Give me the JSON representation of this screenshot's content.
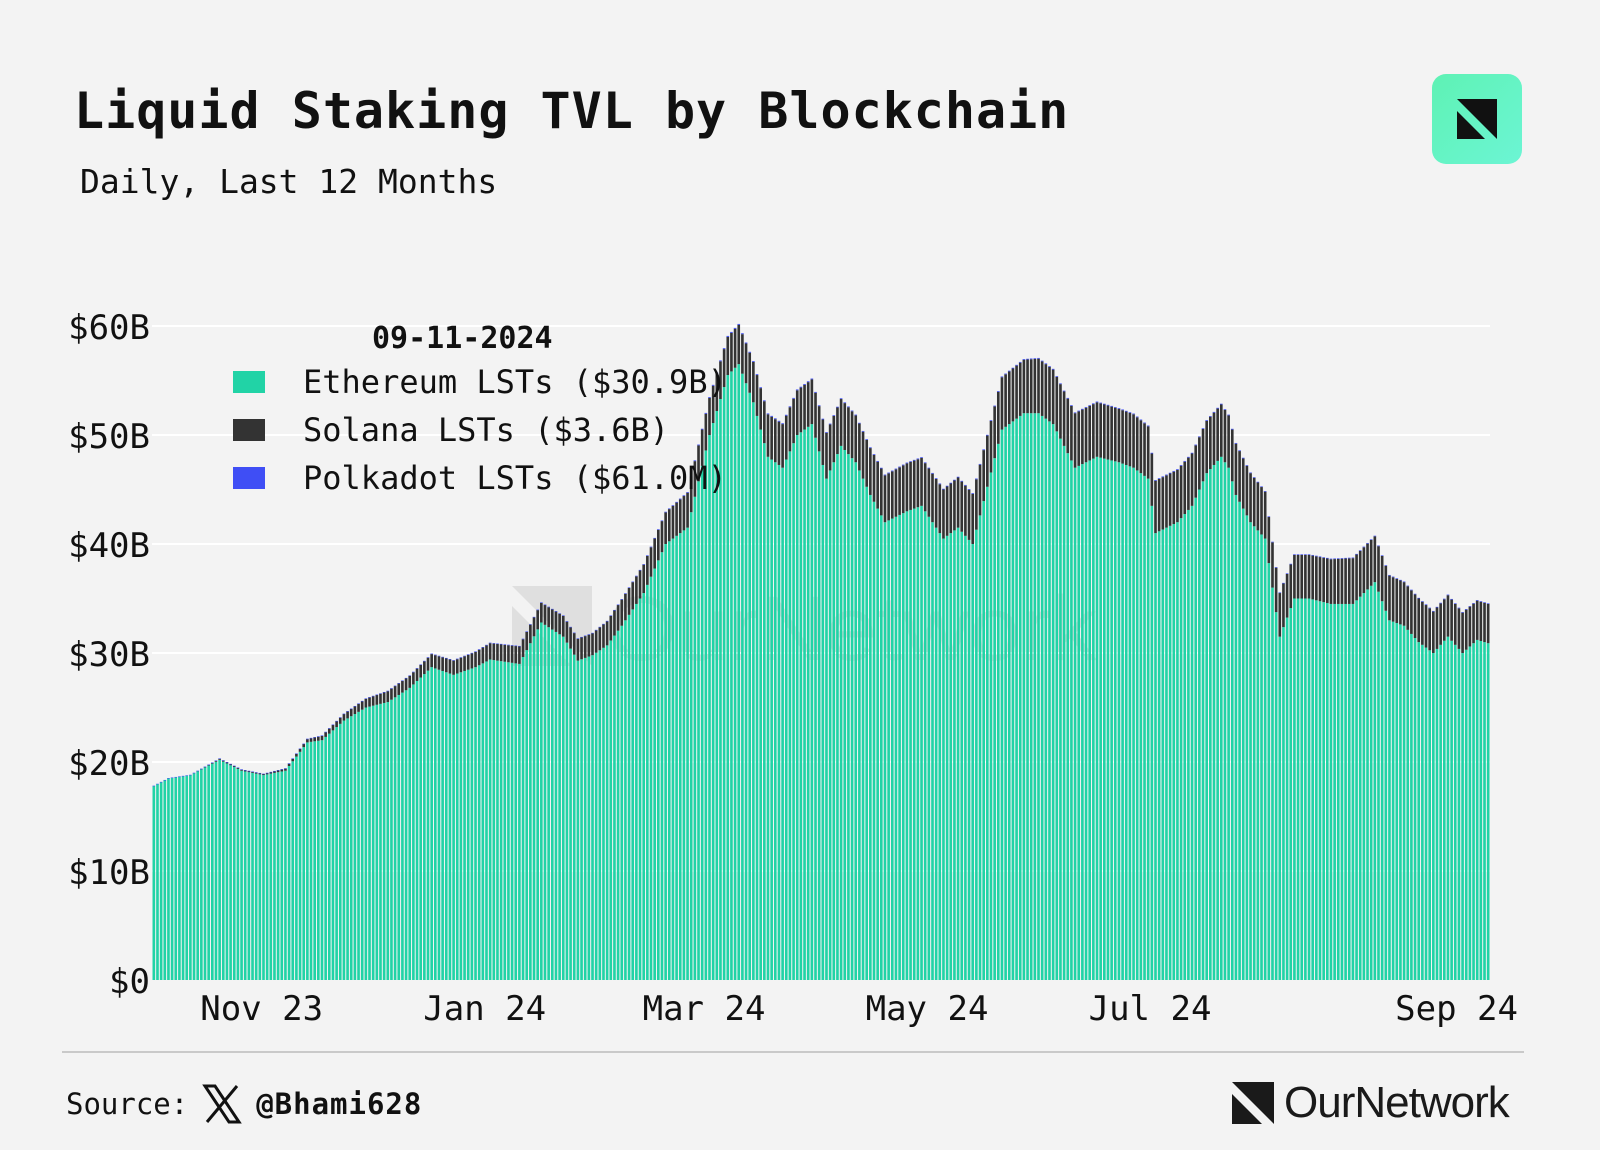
{
  "header": {
    "title": "Liquid Staking TVL by Blockchain",
    "subtitle": "Daily, Last 12 Months"
  },
  "footer": {
    "source_label": "Source:",
    "handle": "@Bhami628",
    "brand": "OurNetwork"
  },
  "icons": {
    "brand_badge": "ournetwork-logo-icon",
    "x_logo": "x-logo-icon",
    "footer_logo": "ournetwork-logo-icon"
  },
  "colors": {
    "ethereum": "#21d3a6",
    "solana": "#333333",
    "polkadot": "#3f4ef5",
    "background": "#f3f3f3",
    "brand_green": "#5ef2b4"
  },
  "chart_data": {
    "type": "bar",
    "stacked": true,
    "title": "Liquid Staking TVL by Blockchain",
    "subtitle": "Daily, Last 12 Months",
    "xlabel": "",
    "ylabel": "",
    "ylim": [
      0,
      60
    ],
    "y_unit": "$B",
    "y_ticks": [
      0,
      10,
      20,
      30,
      40,
      50,
      60
    ],
    "y_tick_labels": [
      "$0",
      "$10B",
      "$20B",
      "$30B",
      "$40B",
      "$50B",
      "$60B"
    ],
    "x_tick_labels": [
      "Nov 23",
      "Jan 24",
      "Mar 24",
      "May 24",
      "Jul 24",
      "Sep 24"
    ],
    "x_tick_day_index": [
      30,
      91,
      151,
      212,
      273,
      335
    ],
    "grid": true,
    "legend": {
      "placement": "top-left",
      "date": "09-11-2024",
      "entries": [
        {
          "name": "Ethereum LSTs",
          "label": "Ethereum LSTs ($30.9B)",
          "color": "#21d3a6"
        },
        {
          "name": "Solana LSTs",
          "label": "Solana LSTs ($3.6B)",
          "color": "#333333"
        },
        {
          "name": "Polkadot LSTs",
          "label": "Polkadot LSTs ($61.0M)",
          "color": "#3f4ef5"
        }
      ]
    },
    "series_anchors": {
      "note": "Daily values (in $B) interpolated between these anchors by day index (0 = first day, 366 days total).",
      "days": [
        0,
        4,
        10,
        18,
        24,
        30,
        36,
        42,
        46,
        52,
        58,
        64,
        70,
        76,
        82,
        88,
        92,
        100,
        106,
        112,
        116,
        120,
        124,
        128,
        134,
        140,
        146,
        152,
        157,
        160,
        164,
        168,
        172,
        176,
        180,
        184,
        188,
        192,
        196,
        200,
        206,
        210,
        216,
        220,
        224,
        232,
        238,
        242,
        246,
        252,
        258,
        264,
        268,
        272,
        274,
        280,
        284,
        288,
        292,
        294,
        296,
        300,
        304,
        308,
        312,
        316,
        322,
        328,
        334,
        338,
        342,
        346,
        350,
        354,
        358,
        362,
        365
      ],
      "ethereum": [
        17.8,
        18.5,
        18.8,
        20.2,
        19.2,
        18.8,
        19.2,
        21.8,
        22.0,
        23.8,
        25.0,
        25.5,
        26.8,
        28.7,
        28.0,
        28.7,
        29.4,
        29.0,
        32.8,
        31.5,
        29.3,
        29.8,
        30.7,
        32.5,
        35.5,
        40.0,
        41.5,
        50.0,
        55.5,
        56.5,
        53.0,
        48.0,
        47.0,
        50.0,
        51.0,
        46.0,
        49.0,
        47.5,
        44.5,
        42.0,
        43.0,
        43.5,
        40.5,
        41.5,
        40.0,
        50.5,
        52.0,
        52.0,
        51.0,
        47.0,
        48.0,
        47.5,
        47.0,
        46.0,
        41.0,
        42.0,
        43.5,
        46.5,
        48.0,
        47.0,
        44.5,
        42.0,
        40.5,
        31.5,
        35.0,
        35.0,
        34.5,
        34.5,
        36.5,
        33.0,
        32.5,
        31.0,
        30.0,
        31.5,
        30.0,
        31.2,
        30.9
      ],
      "solana": [
        0.0,
        0.0,
        0.0,
        0.1,
        0.1,
        0.1,
        0.2,
        0.3,
        0.4,
        0.6,
        0.8,
        1.0,
        1.1,
        1.2,
        1.3,
        1.4,
        1.5,
        1.6,
        1.8,
        1.9,
        2.0,
        2.0,
        2.2,
        2.4,
        2.6,
        2.9,
        3.2,
        3.4,
        3.5,
        3.6,
        3.7,
        3.9,
        4.0,
        4.1,
        4.1,
        4.2,
        4.3,
        4.3,
        4.3,
        4.3,
        4.4,
        4.4,
        4.5,
        4.6,
        4.6,
        4.8,
        4.9,
        5.0,
        5.0,
        5.0,
        5.0,
        4.9,
        4.9,
        4.8,
        4.8,
        4.8,
        4.8,
        4.8,
        4.8,
        4.8,
        4.7,
        4.5,
        4.3,
        4.0,
        4.0,
        4.0,
        4.1,
        4.2,
        4.2,
        4.1,
        4.0,
        4.0,
        3.8,
        3.8,
        3.7,
        3.6,
        3.6
      ],
      "polkadot": [
        0.03,
        0.03,
        0.03,
        0.03,
        0.03,
        0.03,
        0.03,
        0.04,
        0.04,
        0.04,
        0.04,
        0.04,
        0.05,
        0.05,
        0.05,
        0.05,
        0.05,
        0.05,
        0.05,
        0.05,
        0.05,
        0.05,
        0.05,
        0.05,
        0.06,
        0.06,
        0.07,
        0.08,
        0.09,
        0.09,
        0.08,
        0.08,
        0.08,
        0.08,
        0.08,
        0.07,
        0.07,
        0.07,
        0.07,
        0.07,
        0.07,
        0.07,
        0.07,
        0.07,
        0.07,
        0.07,
        0.07,
        0.07,
        0.07,
        0.07,
        0.07,
        0.07,
        0.07,
        0.07,
        0.07,
        0.07,
        0.07,
        0.07,
        0.07,
        0.07,
        0.07,
        0.06,
        0.06,
        0.06,
        0.06,
        0.06,
        0.06,
        0.06,
        0.06,
        0.06,
        0.06,
        0.06,
        0.06,
        0.06,
        0.06,
        0.06,
        0.061
      ]
    },
    "num_days": 366
  }
}
